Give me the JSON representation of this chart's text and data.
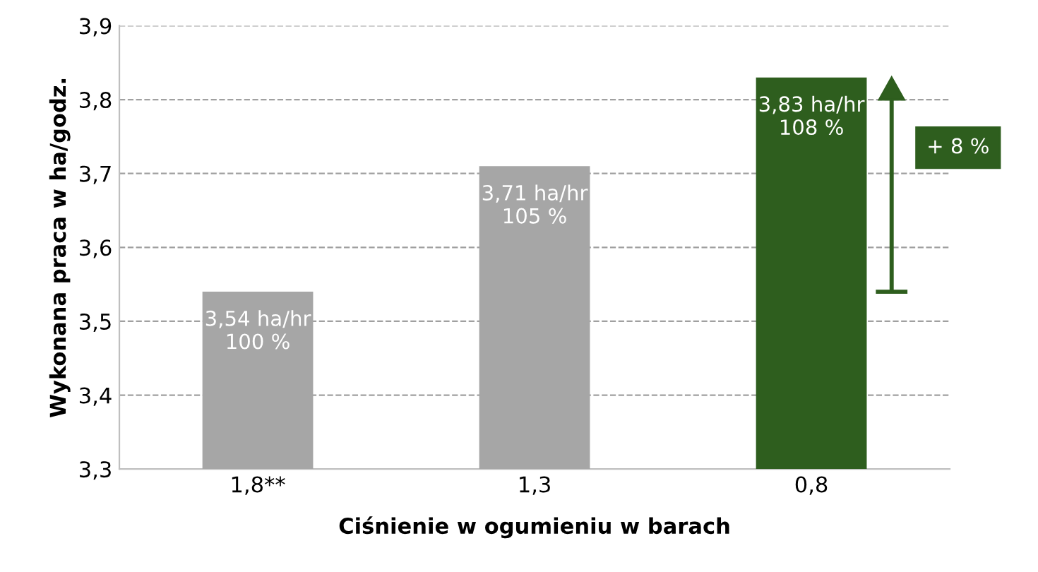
{
  "chart_data": {
    "type": "bar",
    "xlabel": "Ciśnienie w ogumieniu w barach",
    "ylabel": "Wykonana praca w ha/godz.",
    "categories": [
      "1,8**",
      "1,3",
      "0,8"
    ],
    "values": [
      3.54,
      3.71,
      3.83
    ],
    "colors": [
      "#a6a6a6",
      "#a6a6a6",
      "#2e5e1e"
    ],
    "value_labels": [
      "3,54 ha/hr\n100 %",
      "3,71 ha/hr\n105 %",
      "3,83 ha/hr\n108 %"
    ],
    "ylim": [
      3.3,
      3.9
    ],
    "yticks": [
      {
        "value": 3.3,
        "label": "3,3"
      },
      {
        "value": 3.4,
        "label": "3,4"
      },
      {
        "value": 3.5,
        "label": "3,5"
      },
      {
        "value": 3.6,
        "label": "3,6"
      },
      {
        "value": 3.7,
        "label": "3,7"
      },
      {
        "value": 3.8,
        "label": "3,8"
      },
      {
        "value": 3.9,
        "label": "3,9"
      }
    ],
    "grid": "y",
    "annotations": [
      "+ 8 %"
    ]
  }
}
